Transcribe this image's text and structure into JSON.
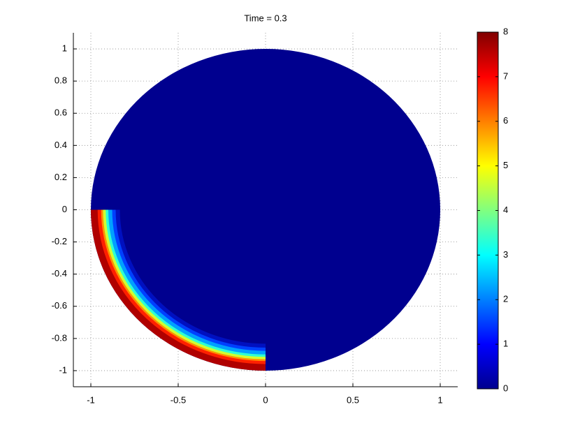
{
  "chart_data": {
    "type": "disk-field",
    "title": "Time = 0.3",
    "xlim": [
      -1.1,
      1.1
    ],
    "xticks": [
      -1,
      -0.5,
      0,
      0.5,
      1
    ],
    "ylim": [
      -1.1,
      1.1
    ],
    "yticks": [
      -1,
      -0.8,
      -0.6,
      -0.4,
      -0.2,
      0,
      0.2,
      0.4,
      0.6,
      0.8,
      1
    ],
    "grid": true,
    "colormap": "jet",
    "colorbar": {
      "clim": [
        0,
        8
      ],
      "ticks": [
        0,
        1,
        2,
        3,
        4,
        5,
        6,
        7,
        8
      ]
    }
  }
}
